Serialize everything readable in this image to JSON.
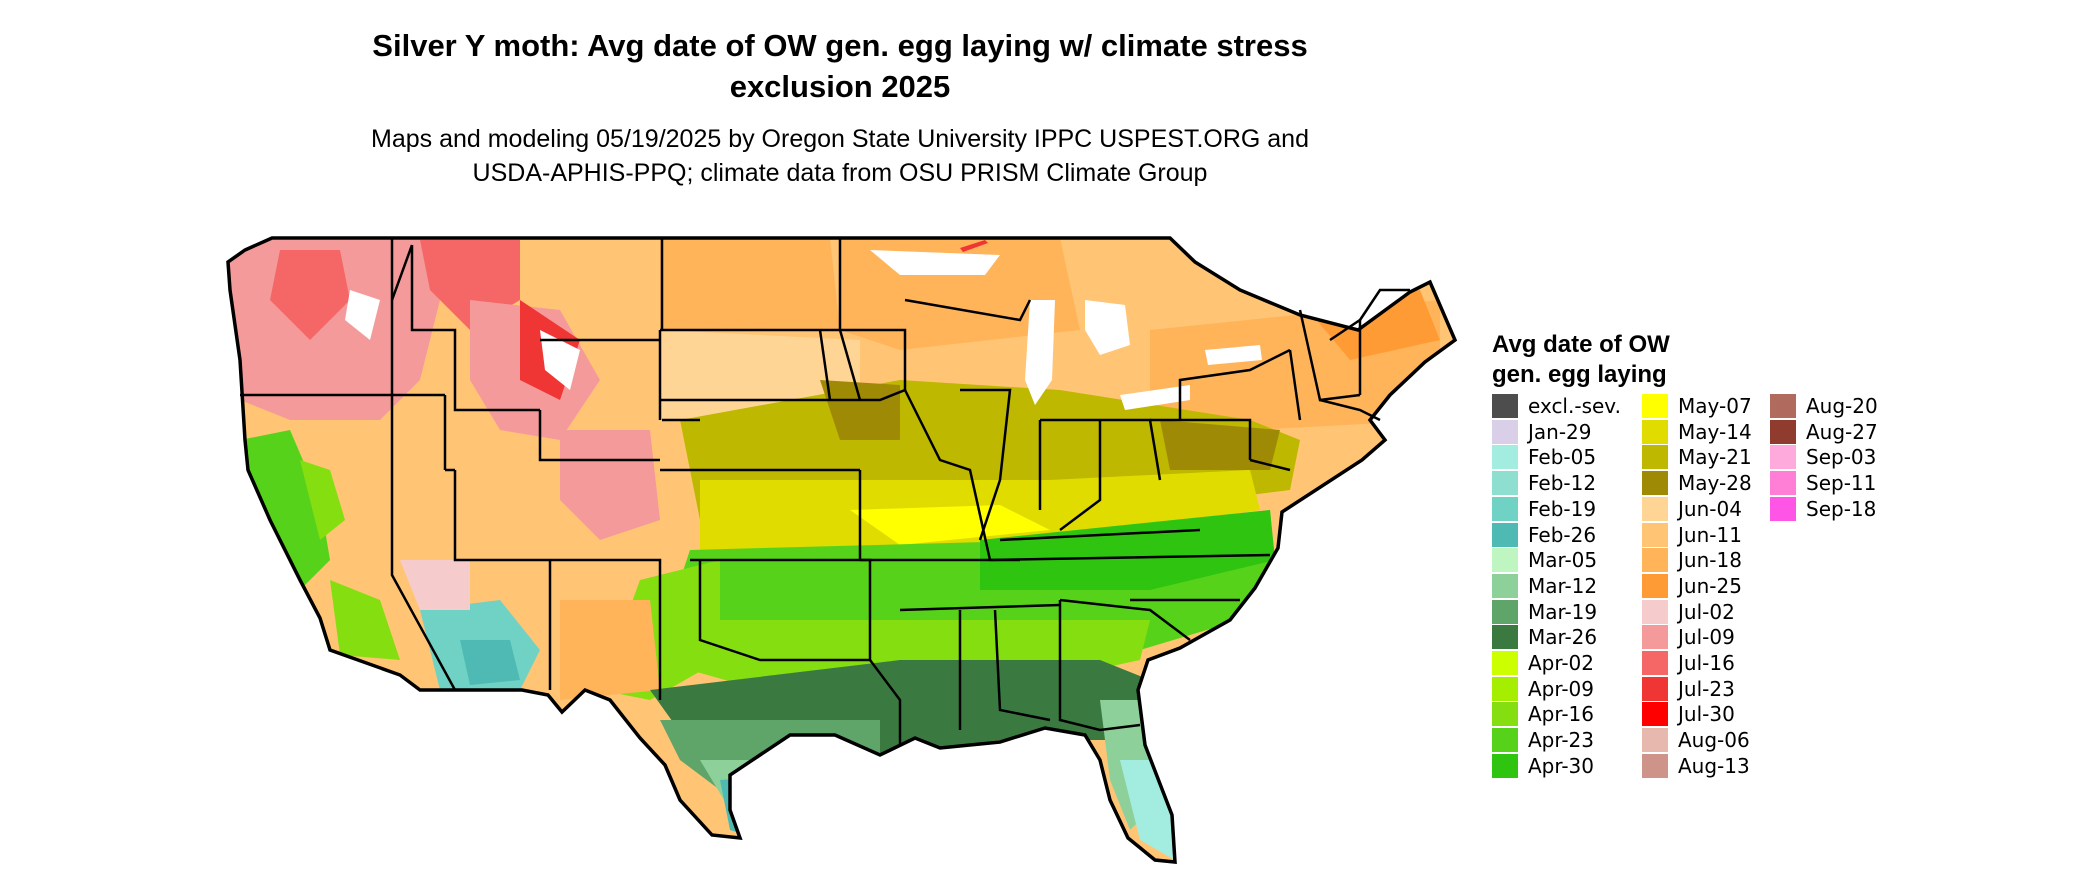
{
  "title": {
    "line1": "Silver Y moth: Avg date of OW gen. egg laying w/ climate stress",
    "line2": "exclusion 2025"
  },
  "subtitle": {
    "line1": "Maps and modeling 05/19/2025 by Oregon State University IPPC USPEST.ORG and",
    "line2": "USDA-APHIS-PPQ; climate data from OSU PRISM Climate Group"
  },
  "legend": {
    "title_line1": "Avg date of OW",
    "title_line2": "gen. egg laying",
    "columns": [
      [
        {
          "label": "excl.-sev.",
          "color": "#4d4d4d"
        },
        {
          "label": "Jan-29",
          "color": "#d9cfe9"
        },
        {
          "label": "Feb-05",
          "color": "#a3ede0"
        },
        {
          "label": "Feb-12",
          "color": "#8fdfd1"
        },
        {
          "label": "Feb-19",
          "color": "#6fd2c4"
        },
        {
          "label": "Feb-26",
          "color": "#4fbab3"
        },
        {
          "label": "Mar-05",
          "color": "#bff5c1"
        },
        {
          "label": "Mar-12",
          "color": "#8ed09a"
        },
        {
          "label": "Mar-19",
          "color": "#5fa469"
        },
        {
          "label": "Mar-26",
          "color": "#3a7a40"
        },
        {
          "label": "Apr-02",
          "color": "#ccff00"
        },
        {
          "label": "Apr-09",
          "color": "#a6ee00"
        },
        {
          "label": "Apr-16",
          "color": "#85de10"
        },
        {
          "label": "Apr-23",
          "color": "#57d21a"
        },
        {
          "label": "Apr-30",
          "color": "#2fc410"
        }
      ],
      [
        {
          "label": "May-07",
          "color": "#ffff00"
        },
        {
          "label": "May-14",
          "color": "#e0dc00"
        },
        {
          "label": "May-21",
          "color": "#bfb800"
        },
        {
          "label": "May-28",
          "color": "#9e8a05"
        },
        {
          "label": "Jun-04",
          "color": "#ffd595"
        },
        {
          "label": "Jun-11",
          "color": "#ffc575"
        },
        {
          "label": "Jun-18",
          "color": "#ffb45a"
        },
        {
          "label": "Jun-25",
          "color": "#ff9b35"
        },
        {
          "label": "Jul-02",
          "color": "#f5cbcb"
        },
        {
          "label": "Jul-09",
          "color": "#f59a9a"
        },
        {
          "label": "Jul-16",
          "color": "#f56767"
        },
        {
          "label": "Jul-23",
          "color": "#f03535"
        },
        {
          "label": "Jul-30",
          "color": "#ff0000"
        },
        {
          "label": "Aug-06",
          "color": "#e6b8ae"
        },
        {
          "label": "Aug-13",
          "color": "#cf9489"
        }
      ],
      [
        {
          "label": "Aug-20",
          "color": "#b06a5e"
        },
        {
          "label": "Aug-27",
          "color": "#8f3b2e"
        },
        {
          "label": "Sep-03",
          "color": "#ffaadc"
        },
        {
          "label": "Sep-11",
          "color": "#ff7ed6"
        },
        {
          "label": "Sep-18",
          "color": "#ff55e6"
        }
      ]
    ]
  },
  "colors": {
    "state_border": "#000000",
    "lake": "#ffffff"
  }
}
